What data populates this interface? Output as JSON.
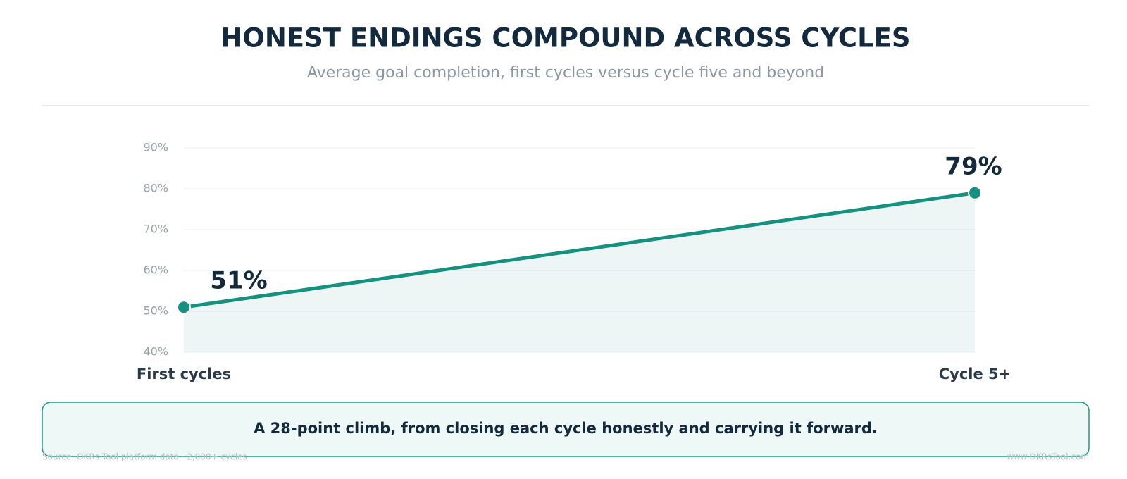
{
  "chart_data": {
    "type": "area",
    "title": "HONEST ENDINGS COMPOUND ACROSS CYCLES",
    "subtitle": "Average goal completion, first cycles versus cycle five and beyond",
    "categories": [
      "First cycles",
      "Cycle 5+"
    ],
    "values": [
      51,
      79
    ],
    "value_labels": [
      "51%",
      "79%"
    ],
    "color": "#14917f",
    "ylim": [
      40,
      90
    ],
    "yticks": [
      {
        "value": 40,
        "label": "40%"
      },
      {
        "value": 50,
        "label": "50%"
      },
      {
        "value": 60,
        "label": "60%"
      },
      {
        "value": 70,
        "label": "70%"
      },
      {
        "value": 80,
        "label": "80%"
      },
      {
        "value": 90,
        "label": "90%"
      }
    ],
    "grid": true
  },
  "callout": "A 28-point climb, from closing each cycle honestly and carrying it forward.",
  "footer": {
    "source": "Source: OKRs Tool platform data · 2,000+ cycles",
    "site": "www.OKRsTool.com"
  }
}
